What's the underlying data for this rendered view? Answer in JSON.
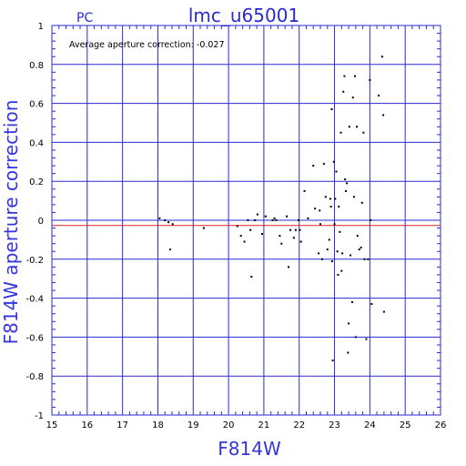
{
  "header": {
    "camera": "PC",
    "title": "lmc_u65001"
  },
  "annotation": "Average aperture correction: -0.027",
  "chart_data": {
    "type": "scatter",
    "title": "lmc_u65001",
    "xlabel": "F814W",
    "ylabel": "F814W aperture correction",
    "xlim": [
      15,
      26
    ],
    "ylim": [
      -1,
      1
    ],
    "x_ticks": [
      "15",
      "16",
      "17",
      "18",
      "19",
      "20",
      "21",
      "22",
      "23",
      "24",
      "25",
      "26"
    ],
    "y_ticks": [
      "-1",
      "-0.8",
      "-0.6",
      "-0.4",
      "-0.2",
      "0",
      "0.2",
      "0.4",
      "0.6",
      "0.8",
      "1"
    ],
    "grid": true,
    "reference_lines": [
      {
        "y": 0,
        "color": "#2a2ad2"
      },
      {
        "y": -0.027,
        "color": "#e02020"
      }
    ],
    "colors": {
      "frame": "#2a2ad2",
      "average_line": "#e02020",
      "points": "#000000",
      "labels": "#3535e0"
    },
    "points": [
      [
        18.05,
        0.01
      ],
      [
        18.2,
        0.0
      ],
      [
        18.3,
        -0.01
      ],
      [
        18.42,
        -0.02
      ],
      [
        18.35,
        -0.15
      ],
      [
        19.3,
        -0.04
      ],
      [
        20.25,
        -0.03
      ],
      [
        20.35,
        -0.08
      ],
      [
        20.45,
        -0.11
      ],
      [
        20.55,
        0.0
      ],
      [
        20.62,
        -0.05
      ],
      [
        20.65,
        -0.29
      ],
      [
        20.75,
        0.0
      ],
      [
        20.82,
        0.03
      ],
      [
        20.95,
        -0.07
      ],
      [
        21.05,
        0.02
      ],
      [
        21.25,
        0.0
      ],
      [
        21.3,
        0.01
      ],
      [
        21.35,
        0.0
      ],
      [
        21.45,
        -0.08
      ],
      [
        21.5,
        -0.12
      ],
      [
        21.65,
        0.02
      ],
      [
        21.7,
        -0.24
      ],
      [
        21.75,
        -0.05
      ],
      [
        21.85,
        -0.09
      ],
      [
        21.9,
        -0.05
      ],
      [
        21.98,
        0.0
      ],
      [
        22.02,
        -0.05
      ],
      [
        22.05,
        -0.11
      ],
      [
        22.15,
        0.15
      ],
      [
        22.25,
        0.01
      ],
      [
        22.4,
        0.28
      ],
      [
        22.45,
        0.06
      ],
      [
        22.55,
        -0.17
      ],
      [
        22.58,
        0.05
      ],
      [
        22.6,
        -0.02
      ],
      [
        22.65,
        -0.2
      ],
      [
        22.7,
        0.29
      ],
      [
        22.75,
        0.12
      ],
      [
        22.8,
        -0.15
      ],
      [
        22.85,
        -0.1
      ],
      [
        22.88,
        0.11
      ],
      [
        22.9,
        0.07
      ],
      [
        22.92,
        0.57
      ],
      [
        22.93,
        -0.21
      ],
      [
        22.95,
        -0.72
      ],
      [
        22.98,
        0.3
      ],
      [
        23.0,
        -0.02
      ],
      [
        23.02,
        0.11
      ],
      [
        23.05,
        0.25
      ],
      [
        23.08,
        -0.16
      ],
      [
        23.1,
        -0.28
      ],
      [
        23.12,
        0.07
      ],
      [
        23.15,
        -0.06
      ],
      [
        23.18,
        0.45
      ],
      [
        23.2,
        -0.26
      ],
      [
        23.22,
        -0.17
      ],
      [
        23.25,
        0.66
      ],
      [
        23.28,
        0.74
      ],
      [
        23.3,
        0.21
      ],
      [
        23.32,
        0.15
      ],
      [
        23.35,
        0.19
      ],
      [
        23.38,
        -0.68
      ],
      [
        23.4,
        -0.53
      ],
      [
        23.42,
        0.48
      ],
      [
        23.45,
        -0.18
      ],
      [
        23.5,
        -0.42
      ],
      [
        23.52,
        0.63
      ],
      [
        23.55,
        0.12
      ],
      [
        23.58,
        0.74
      ],
      [
        23.6,
        -0.6
      ],
      [
        23.63,
        0.48
      ],
      [
        23.65,
        -0.08
      ],
      [
        23.7,
        -0.15
      ],
      [
        23.75,
        -0.14
      ],
      [
        23.78,
        0.09
      ],
      [
        23.82,
        0.45
      ],
      [
        23.85,
        -0.2
      ],
      [
        23.9,
        -0.61
      ],
      [
        23.95,
        -0.2
      ],
      [
        24.0,
        0.72
      ],
      [
        24.02,
        0.0
      ],
      [
        24.05,
        -0.43
      ],
      [
        24.25,
        0.64
      ],
      [
        24.35,
        0.84
      ],
      [
        24.38,
        0.54
      ],
      [
        24.4,
        -0.47
      ]
    ]
  }
}
